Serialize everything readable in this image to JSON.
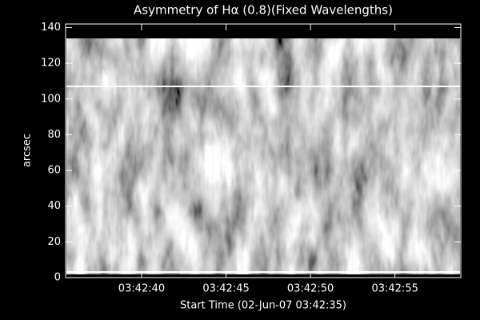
{
  "chart_data": {
    "type": "image",
    "title": "Asymmetry of Hα (0.8)(Fixed Wavelengths)",
    "x_label": "Start Time (02-Jun-07 03:42:35)",
    "y_label": "arcsec",
    "xlim": [
      0.5,
      23.9
    ],
    "xticks": [
      {
        "value": 5,
        "label": "03:42:40"
      },
      {
        "value": 10,
        "label": "03:42:45"
      },
      {
        "value": 15,
        "label": "03:42:50"
      },
      {
        "value": 20,
        "label": "03:42:55"
      }
    ],
    "ylim": [
      0,
      142
    ],
    "yticks": [
      0,
      20,
      40,
      60,
      80,
      100,
      120,
      140
    ],
    "colormap": "gray",
    "background": "#000000",
    "axis_color": "#ffffff"
  }
}
